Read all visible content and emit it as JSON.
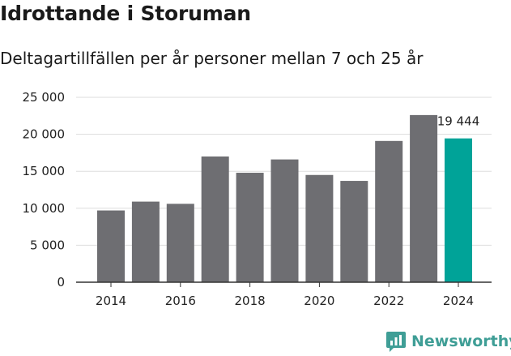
{
  "title": "Idrottande i Storuman",
  "subtitle": "Deltagartillfällen per år personer mellan 7 och 25 år",
  "brand": {
    "name": "Newsworthy",
    "icon": "newsworthy-logo-icon"
  },
  "colors": {
    "bar": "#6e6e72",
    "highlight": "#00a398",
    "grid": "#dddddd",
    "axis": "#333333",
    "brand": "#3f9e96"
  },
  "chart_data": {
    "type": "bar",
    "title": "Idrottande i Storuman",
    "subtitle": "Deltagartillfällen per år personer mellan 7 och 25 år",
    "xlabel": "",
    "ylabel": "",
    "categories": [
      2014,
      2015,
      2016,
      2017,
      2018,
      2019,
      2020,
      2021,
      2022,
      2023,
      2024
    ],
    "values": [
      9700,
      10900,
      10600,
      17000,
      14800,
      16600,
      14500,
      13700,
      19100,
      22600,
      19444
    ],
    "highlight_index": 10,
    "highlight_label": "19 444",
    "ylim": [
      0,
      25000
    ],
    "yticks": [
      0,
      5000,
      10000,
      15000,
      20000,
      25000
    ],
    "ytick_labels": [
      "0",
      "5 000",
      "10 000",
      "15 000",
      "20 000",
      "25 000"
    ],
    "xtick_labels": [
      "2014",
      "2016",
      "2018",
      "2020",
      "2022",
      "2024"
    ],
    "grid": true,
    "legend": "none"
  }
}
